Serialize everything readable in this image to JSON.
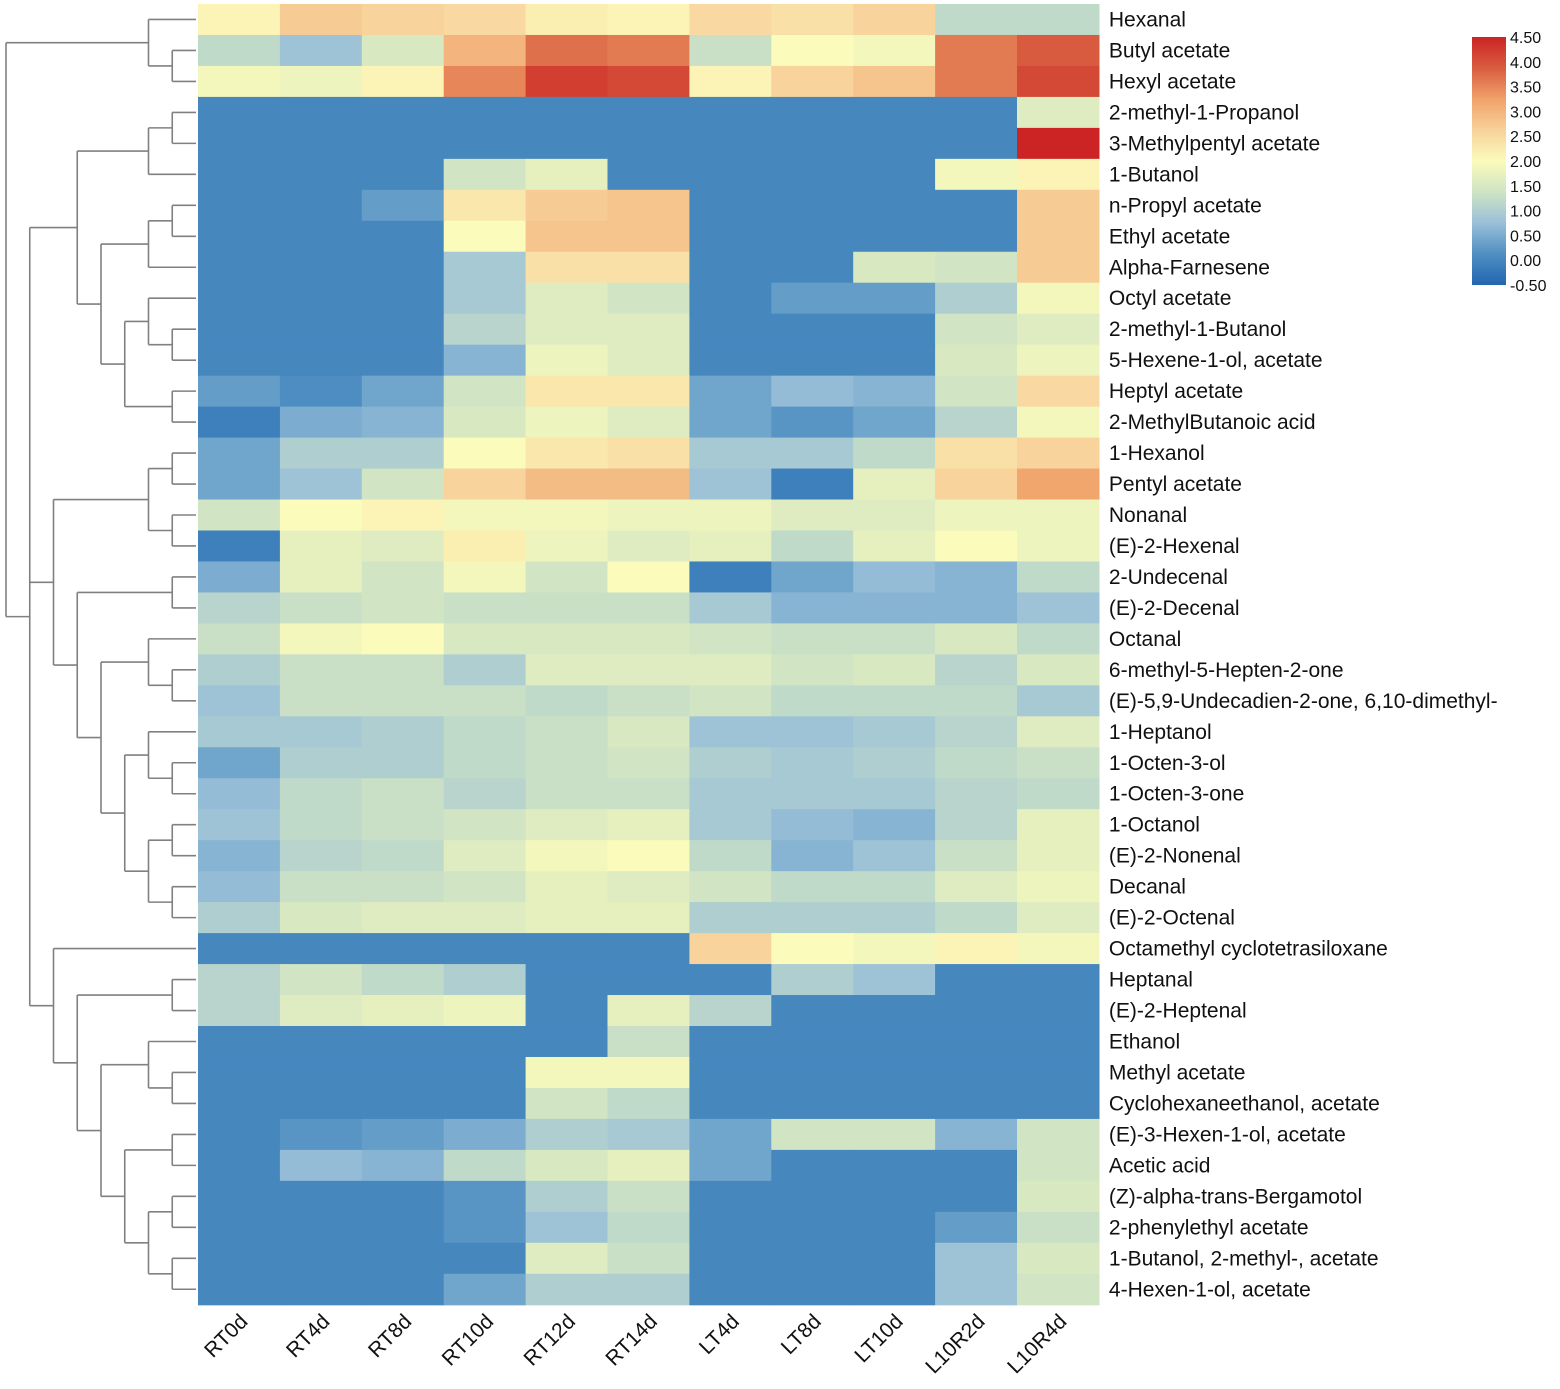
{
  "chart_data": {
    "type": "heatmap",
    "title": "",
    "columns": [
      "RT0d",
      "RT4d",
      "RT8d",
      "RT10d",
      "RT12d",
      "RT14d",
      "LT4d",
      "LT8d",
      "LT10d",
      "L10R2d",
      "L10R4d"
    ],
    "rows": [
      "Hexanal",
      "Butyl acetate",
      "Hexyl acetate",
      "2-methyl-1-Propanol",
      "3-Methylpentyl acetate",
      "1-Butanol",
      "n-Propyl acetate",
      "Ethyl acetate",
      "Alpha-Farnesene",
      "Octyl acetate",
      "2-methyl-1-Butanol",
      "5-Hexene-1-ol, acetate",
      "Heptyl acetate",
      "2-MethylButanoic acid",
      "1-Hexanol",
      "Pentyl acetate",
      "Nonanal",
      "(E)-2-Hexenal",
      "2-Undecenal",
      "(E)-2-Decenal",
      "Octanal",
      "6-methyl-5-Hepten-2-one",
      "(E)-5,9-Undecadien-2-one, 6,10-dimethyl-",
      "1-Heptanol",
      "1-Octen-3-ol",
      "1-Octen-3-one",
      "1-Octanol",
      "(E)-2-Nonenal",
      "Decanal",
      "(E)-2-Octenal",
      "Octamethyl cyclotetrasiloxane",
      "Heptanal",
      "(E)-2-Heptenal",
      "Ethanol",
      "Methyl acetate",
      "Cyclohexaneethanol, acetate",
      "(E)-3-Hexen-1-ol, acetate",
      "Acetic acid",
      "(Z)-alpha-trans-Bergamotol",
      "2-phenylethyl acetate",
      "1-Butanol, 2-methyl-, acetate",
      "4-Hexen-1-ol, acetate"
    ],
    "values": [
      [
        2.1,
        2.7,
        2.6,
        2.5,
        2.2,
        2.1,
        2.5,
        2.4,
        2.6,
        1.2,
        1.2
      ],
      [
        1.2,
        0.8,
        1.5,
        3.0,
        3.7,
        3.6,
        1.3,
        2.0,
        1.9,
        3.6,
        3.9
      ],
      [
        1.9,
        1.8,
        2.1,
        3.5,
        4.2,
        4.1,
        2.1,
        2.6,
        2.8,
        3.6,
        4.1
      ],
      [
        0,
        0,
        0,
        0,
        0,
        0,
        0,
        0,
        0,
        0,
        1.6
      ],
      [
        0,
        0,
        0,
        0,
        0,
        0,
        0,
        0,
        0,
        0,
        4.5
      ],
      [
        0,
        0,
        0,
        1.4,
        1.7,
        0,
        0,
        0,
        0,
        1.9,
        2.1
      ],
      [
        0,
        0,
        0.3,
        2.3,
        2.7,
        2.8,
        0,
        0,
        0,
        0,
        2.7
      ],
      [
        0,
        0,
        0,
        2.0,
        2.8,
        2.8,
        0,
        0,
        0,
        0,
        2.7
      ],
      [
        0,
        0,
        0,
        0.9,
        2.4,
        2.4,
        0,
        0,
        1.5,
        1.4,
        2.7
      ],
      [
        0,
        0,
        0,
        0.9,
        1.6,
        1.4,
        0,
        0.3,
        0.3,
        1.0,
        1.9
      ],
      [
        0,
        0,
        0,
        1.1,
        1.6,
        1.6,
        0,
        0,
        0,
        1.4,
        1.6
      ],
      [
        0,
        0,
        0,
        0.6,
        1.8,
        1.6,
        0,
        0,
        0,
        1.5,
        1.8
      ],
      [
        0.3,
        0.1,
        0.4,
        1.4,
        2.3,
        2.3,
        0.4,
        0.7,
        0.6,
        1.4,
        2.5
      ],
      [
        -0.1,
        0.5,
        0.6,
        1.5,
        1.8,
        1.6,
        0.4,
        0.2,
        0.4,
        1.1,
        1.9
      ],
      [
        0.4,
        1.0,
        1.0,
        2.0,
        2.3,
        2.4,
        0.9,
        0.9,
        1.2,
        2.4,
        2.6
      ],
      [
        0.4,
        0.8,
        1.4,
        2.6,
        2.9,
        2.9,
        0.8,
        -0.1,
        1.7,
        2.6,
        3.2
      ],
      [
        1.4,
        2.0,
        2.1,
        1.9,
        1.9,
        1.8,
        1.8,
        1.6,
        1.6,
        1.8,
        1.8
      ],
      [
        -0.1,
        1.7,
        1.6,
        2.2,
        1.8,
        1.6,
        1.7,
        1.2,
        1.7,
        2.0,
        1.8
      ],
      [
        0.5,
        1.7,
        1.4,
        1.9,
        1.4,
        2.0,
        -0.1,
        0.4,
        0.7,
        0.6,
        1.2
      ],
      [
        1.1,
        1.3,
        1.4,
        1.3,
        1.3,
        1.3,
        0.9,
        0.6,
        0.6,
        0.6,
        0.8
      ],
      [
        1.3,
        1.9,
        2.0,
        1.5,
        1.5,
        1.5,
        1.4,
        1.3,
        1.3,
        1.5,
        1.2
      ],
      [
        1.0,
        1.3,
        1.3,
        1.0,
        1.6,
        1.6,
        1.6,
        1.4,
        1.5,
        1.1,
        1.5
      ],
      [
        0.8,
        1.3,
        1.3,
        1.3,
        1.2,
        1.3,
        1.4,
        1.2,
        1.2,
        1.2,
        0.9
      ],
      [
        0.9,
        0.9,
        1.0,
        1.2,
        1.3,
        1.5,
        0.8,
        0.8,
        0.9,
        1.1,
        1.6
      ],
      [
        0.4,
        1.0,
        1.0,
        1.2,
        1.3,
        1.4,
        1.0,
        0.9,
        1.0,
        1.2,
        1.3
      ],
      [
        0.7,
        1.2,
        1.3,
        1.1,
        1.3,
        1.3,
        0.9,
        0.9,
        0.9,
        1.1,
        1.2
      ],
      [
        0.8,
        1.2,
        1.3,
        1.4,
        1.6,
        1.7,
        0.9,
        0.7,
        0.6,
        1.1,
        1.7
      ],
      [
        0.6,
        1.1,
        1.2,
        1.6,
        1.9,
        2.0,
        1.2,
        0.6,
        0.8,
        1.3,
        1.7
      ],
      [
        0.7,
        1.3,
        1.3,
        1.4,
        1.7,
        1.6,
        1.4,
        1.2,
        1.2,
        1.6,
        1.8
      ],
      [
        1.0,
        1.5,
        1.6,
        1.6,
        1.7,
        1.7,
        1.0,
        1.0,
        1.0,
        1.2,
        1.6
      ],
      [
        0,
        0,
        0,
        0,
        0,
        0,
        2.6,
        2.0,
        1.9,
        2.1,
        1.9
      ],
      [
        1.1,
        1.4,
        1.2,
        1.0,
        0,
        0,
        0,
        1.0,
        0.8,
        0,
        0
      ],
      [
        1.1,
        1.6,
        1.7,
        1.8,
        0,
        1.7,
        1.1,
        0,
        0,
        0,
        0
      ],
      [
        0,
        0,
        0,
        0,
        0,
        1.3,
        0,
        0,
        0,
        0,
        0
      ],
      [
        0,
        0,
        0,
        0,
        1.9,
        1.9,
        0,
        0,
        0,
        0,
        0
      ],
      [
        0,
        0,
        0,
        0,
        1.4,
        1.2,
        0,
        0,
        0,
        0,
        0
      ],
      [
        0,
        0.2,
        0.3,
        0.5,
        1.0,
        0.9,
        0.4,
        1.4,
        1.4,
        0.6,
        1.4
      ],
      [
        0,
        0.7,
        0.6,
        1.2,
        1.5,
        1.7,
        0.4,
        0,
        0,
        0,
        1.4
      ],
      [
        0,
        0,
        0,
        0.2,
        1.0,
        1.3,
        0,
        0,
        0,
        0,
        1.5
      ],
      [
        0,
        0,
        0,
        0.2,
        0.8,
        1.2,
        0,
        0,
        0,
        0.3,
        1.3
      ],
      [
        0,
        0,
        0,
        0,
        1.6,
        1.3,
        0,
        0,
        0,
        0.8,
        1.5
      ],
      [
        0,
        0,
        0,
        0.4,
        1.0,
        1.0,
        0,
        0,
        0,
        0.8,
        1.4
      ]
    ],
    "colorbar": {
      "min": -0.5,
      "max": 4.5,
      "ticks": [
        "4.50",
        "4.00",
        "3.50",
        "3.00",
        "2.50",
        "2.00",
        "1.50",
        "1.00",
        "0.50",
        "0.00",
        "-0.50"
      ],
      "colors": [
        "#2166b0",
        "#4f8fc2",
        "#9ac0d8",
        "#cfe4c4",
        "#fbfbbb",
        "#f8d19a",
        "#f0a26a",
        "#d85c40",
        "#cc2424"
      ]
    }
  }
}
